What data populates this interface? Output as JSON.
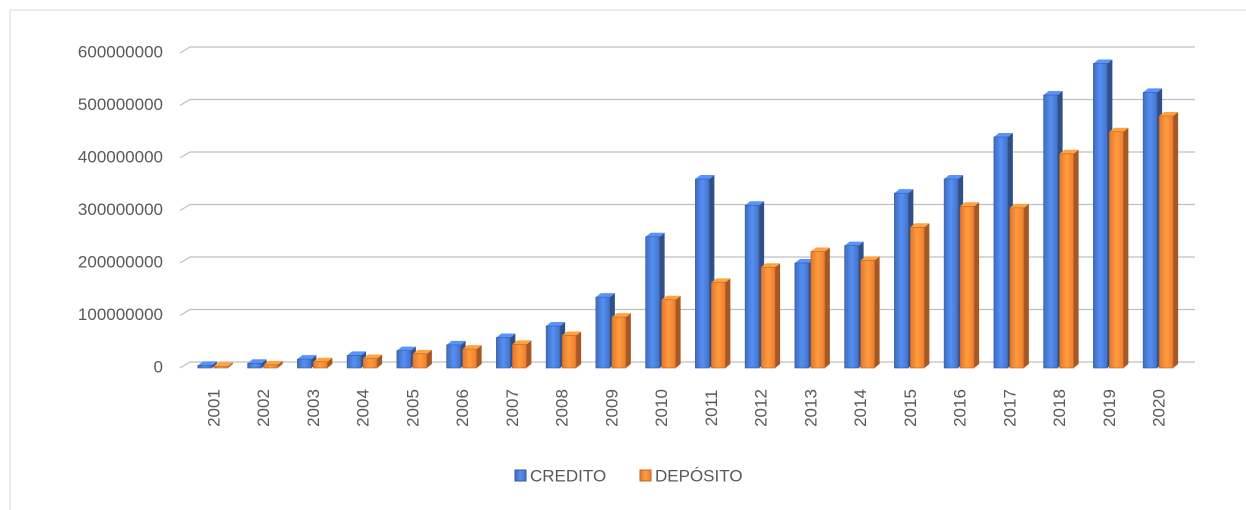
{
  "chart_data": {
    "type": "bar3d",
    "categories": [
      "2001",
      "2002",
      "2003",
      "2004",
      "2005",
      "2006",
      "2007",
      "2008",
      "2009",
      "2010",
      "2011",
      "2012",
      "2013",
      "2014",
      "2015",
      "2016",
      "2017",
      "2018",
      "2019",
      "2020"
    ],
    "series": [
      {
        "name": "CREDITO",
        "color": "#4472c4",
        "values": [
          5000000,
          9000000,
          17000000,
          24000000,
          33000000,
          44000000,
          58000000,
          80000000,
          135000000,
          250000000,
          360000000,
          310000000,
          200000000,
          233000000,
          333000000,
          360000000,
          440000000,
          520000000,
          580000000,
          525000000
        ]
      },
      {
        "name": "DEPÓSITO",
        "color": "#ed7d31",
        "values": [
          3000000,
          6000000,
          12000000,
          18000000,
          27000000,
          36000000,
          45000000,
          62000000,
          97000000,
          130000000,
          163000000,
          192000000,
          222000000,
          205000000,
          268000000,
          308000000,
          305000000,
          408000000,
          450000000,
          480000000
        ]
      }
    ],
    "ylim": [
      0,
      600000000
    ],
    "yticks": [
      0,
      100000000,
      200000000,
      300000000,
      400000000,
      500000000,
      600000000
    ],
    "grid": true,
    "legend": "bottom"
  }
}
